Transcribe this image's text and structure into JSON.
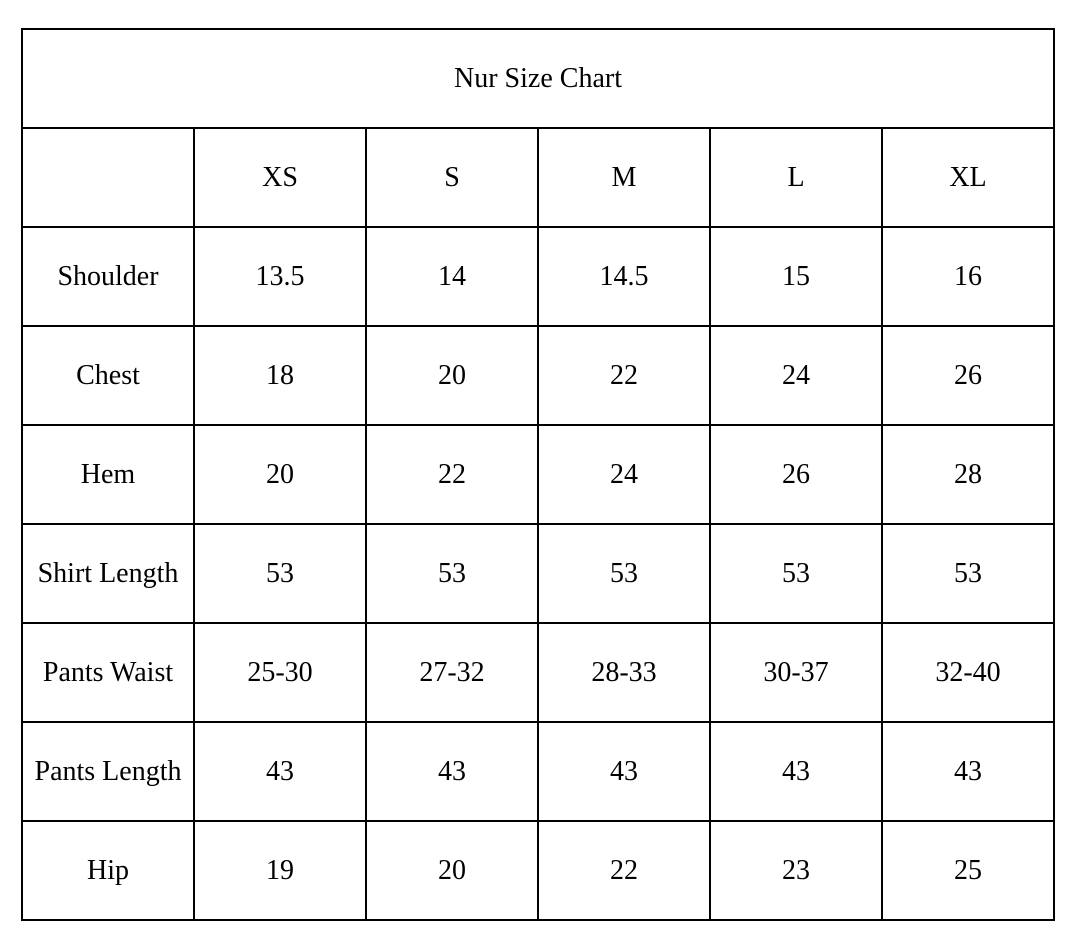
{
  "chart_data": {
    "type": "table",
    "title": "Nur Size Chart",
    "columns": [
      "",
      "XS",
      "S",
      "M",
      "L",
      "XL"
    ],
    "rows": [
      {
        "label": "Shoulder",
        "values": [
          "13.5",
          "14",
          "14.5",
          "15",
          "16"
        ]
      },
      {
        "label": "Chest",
        "values": [
          "18",
          "20",
          "22",
          "24",
          "26"
        ]
      },
      {
        "label": "Hem",
        "values": [
          "20",
          "22",
          "24",
          "26",
          "28"
        ]
      },
      {
        "label": "Shirt Length",
        "values": [
          "53",
          "53",
          "53",
          "53",
          "53"
        ]
      },
      {
        "label": "Pants Waist",
        "values": [
          "25-30",
          "27-32",
          "28-33",
          "30-37",
          "32-40"
        ]
      },
      {
        "label": "Pants Length",
        "values": [
          "43",
          "43",
          "43",
          "43",
          "43"
        ]
      },
      {
        "label": "Hip",
        "values": [
          "19",
          "20",
          "22",
          "23",
          "25"
        ]
      }
    ]
  }
}
